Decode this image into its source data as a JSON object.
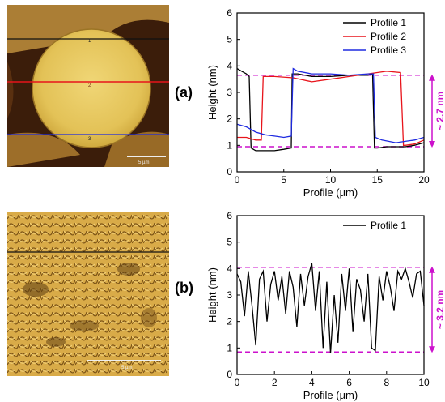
{
  "panel_a": {
    "label": "(a)",
    "image": {
      "scale_label": "5 µm",
      "line_labels": [
        "1",
        "2",
        "3"
      ]
    },
    "annotation": "~ 2.7 nm"
  },
  "panel_b": {
    "label": "(b)",
    "image": {
      "scale_label": "5 µm"
    },
    "annotation": "~ 3.2 nm"
  },
  "colors": {
    "profile1": "#000000",
    "profile2": "#e8141b",
    "profile3": "#1f2be0",
    "dashed": "#cc11cc"
  },
  "chart_data": [
    {
      "type": "line",
      "xlabel": "Profile (µm)",
      "ylabel": "Height (nm)",
      "xlim": [
        0,
        20
      ],
      "ylim": [
        0,
        6
      ],
      "xticks": [
        0,
        5,
        10,
        15,
        20
      ],
      "yticks": [
        0,
        1,
        2,
        3,
        4,
        5,
        6
      ],
      "legend_position": "top-right",
      "reference_lines": [
        3.65,
        0.95
      ],
      "series": [
        {
          "name": "Profile 1",
          "color": "#000000",
          "x": [
            0,
            0.5,
            1,
            1.3,
            1.5,
            2,
            3,
            4,
            5,
            5.8,
            5.9,
            6.5,
            8,
            10,
            12,
            14,
            14.5,
            14.7,
            15,
            16,
            17,
            18,
            19,
            20
          ],
          "y": [
            3.9,
            3.8,
            3.7,
            3.6,
            0.9,
            0.8,
            0.8,
            0.8,
            0.85,
            0.9,
            3.7,
            3.7,
            3.6,
            3.6,
            3.65,
            3.65,
            3.7,
            0.9,
            0.9,
            0.95,
            0.95,
            0.95,
            1.0,
            1.1
          ]
        },
        {
          "name": "Profile 2",
          "color": "#e8141b",
          "x": [
            0,
            1,
            2,
            2.6,
            2.8,
            4,
            6,
            8,
            10,
            12,
            14,
            16,
            17.5,
            17.8,
            18,
            19,
            20
          ],
          "y": [
            1.3,
            1.3,
            1.2,
            1.2,
            3.6,
            3.6,
            3.55,
            3.4,
            3.5,
            3.6,
            3.7,
            3.8,
            3.75,
            1.0,
            1.0,
            1.05,
            1.2
          ]
        },
        {
          "name": "Profile 3",
          "color": "#1f2be0",
          "x": [
            0,
            1,
            2,
            3,
            4,
            5,
            5.8,
            6,
            6.5,
            8,
            10,
            12,
            14,
            14.6,
            14.8,
            15.5,
            17,
            18,
            19,
            20
          ],
          "y": [
            1.8,
            1.7,
            1.5,
            1.4,
            1.35,
            1.3,
            1.35,
            3.9,
            3.8,
            3.7,
            3.7,
            3.65,
            3.7,
            3.7,
            1.3,
            1.2,
            1.1,
            1.15,
            1.2,
            1.3
          ]
        }
      ]
    },
    {
      "type": "line",
      "xlabel": "Profile (µm)",
      "ylabel": "Height (nm)",
      "xlim": [
        0,
        10
      ],
      "ylim": [
        0,
        6
      ],
      "xticks": [
        0,
        2,
        4,
        6,
        8,
        10
      ],
      "yticks": [
        0,
        1,
        2,
        3,
        4,
        5,
        6
      ],
      "legend_position": "top-right",
      "reference_lines": [
        4.05,
        0.85
      ],
      "series": [
        {
          "name": "Profile 1",
          "color": "#000000",
          "x": [
            0,
            0.2,
            0.4,
            0.6,
            0.8,
            1.0,
            1.2,
            1.4,
            1.6,
            1.8,
            2.0,
            2.2,
            2.4,
            2.6,
            2.8,
            3.0,
            3.2,
            3.4,
            3.6,
            3.8,
            4.0,
            4.2,
            4.4,
            4.6,
            4.8,
            5.0,
            5.2,
            5.4,
            5.6,
            5.8,
            6.0,
            6.2,
            6.4,
            6.6,
            6.8,
            7.0,
            7.2,
            7.4,
            7.6,
            7.8,
            8.0,
            8.2,
            8.4,
            8.6,
            8.8,
            9.0,
            9.2,
            9.4,
            9.6,
            9.8,
            10.0
          ],
          "y": [
            3.8,
            3.5,
            2.2,
            3.9,
            2.6,
            1.1,
            3.6,
            3.9,
            2.0,
            3.4,
            3.9,
            2.8,
            3.7,
            2.3,
            3.9,
            3.3,
            1.8,
            3.8,
            2.6,
            3.7,
            4.2,
            2.4,
            3.9,
            1.0,
            3.5,
            0.8,
            3.0,
            1.2,
            3.8,
            2.4,
            4.0,
            1.6,
            3.6,
            3.2,
            2.0,
            3.8,
            1.0,
            0.9,
            3.7,
            2.8,
            3.9,
            3.3,
            2.4,
            3.9,
            3.6,
            4.0,
            3.5,
            2.9,
            3.8,
            3.9,
            2.6
          ]
        }
      ]
    }
  ]
}
